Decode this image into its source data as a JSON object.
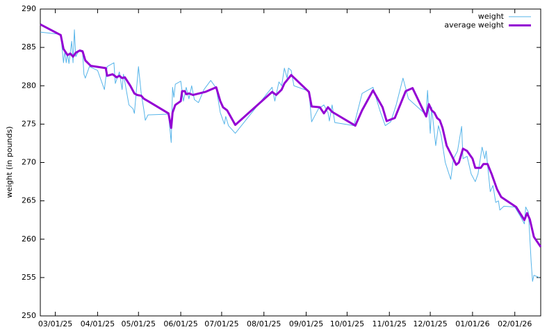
{
  "chart_data": {
    "type": "line",
    "y_label": "weight (in pounds)",
    "xlim": [
      "2025-02-18",
      "2026-02-20"
    ],
    "ylim": [
      250,
      290
    ],
    "yticks": [
      250,
      255,
      260,
      265,
      270,
      275,
      280,
      285,
      290
    ],
    "xticks": [
      {
        "value": "2025-03-01",
        "label": "03/01/25"
      },
      {
        "value": "2025-04-01",
        "label": "04/01/25"
      },
      {
        "value": "2025-05-01",
        "label": "05/01/25"
      },
      {
        "value": "2025-06-01",
        "label": "06/01/25"
      },
      {
        "value": "2025-07-01",
        "label": "07/01/25"
      },
      {
        "value": "2025-08-01",
        "label": "08/01/25"
      },
      {
        "value": "2025-09-01",
        "label": "09/01/25"
      },
      {
        "value": "2025-10-01",
        "label": "10/01/25"
      },
      {
        "value": "2025-11-01",
        "label": "11/01/25"
      },
      {
        "value": "2025-12-01",
        "label": "12/01/25"
      },
      {
        "value": "2026-01-01",
        "label": "01/01/26"
      },
      {
        "value": "2026-02-01",
        "label": "02/01/26"
      }
    ],
    "legend": "top right",
    "series": [
      {
        "name": "weight",
        "color": "#56b4e9",
        "width": 1,
        "x": [
          "2025-02-18",
          "2025-03-05",
          "2025-03-07",
          "2025-03-08",
          "2025-03-09",
          "2025-03-10",
          "2025-03-11",
          "2025-03-13",
          "2025-03-14",
          "2025-03-15",
          "2025-03-16",
          "2025-03-18",
          "2025-03-21",
          "2025-03-22",
          "2025-03-23",
          "2025-03-26",
          "2025-04-01",
          "2025-04-06",
          "2025-04-08",
          "2025-04-13",
          "2025-04-14",
          "2025-04-17",
          "2025-04-19",
          "2025-04-20",
          "2025-04-24",
          "2025-04-27",
          "2025-04-28",
          "2025-05-01",
          "2025-05-03",
          "2025-05-05",
          "2025-05-06",
          "2025-05-08",
          "2025-05-23",
          "2025-05-25",
          "2025-05-26",
          "2025-05-27",
          "2025-05-28",
          "2025-06-01",
          "2025-06-03",
          "2025-06-05",
          "2025-06-07",
          "2025-06-09",
          "2025-06-11",
          "2025-06-14",
          "2025-06-18",
          "2025-06-23",
          "2025-06-27",
          "2025-06-30",
          "2025-07-03",
          "2025-07-04",
          "2025-07-06",
          "2025-07-11",
          "2025-08-07",
          "2025-08-09",
          "2025-08-12",
          "2025-08-14",
          "2025-08-16",
          "2025-08-18",
          "2025-08-19",
          "2025-08-21",
          "2025-08-23",
          "2025-09-03",
          "2025-09-05",
          "2025-09-10",
          "2025-09-14",
          "2025-09-17",
          "2025-09-18",
          "2025-09-20",
          "2025-09-22",
          "2025-10-06",
          "2025-10-12",
          "2025-10-20",
          "2025-10-25",
          "2025-10-29",
          "2025-11-02",
          "2025-11-06",
          "2025-11-11",
          "2025-11-15",
          "2025-11-28",
          "2025-11-29",
          "2025-12-01",
          "2025-12-02",
          "2025-12-05",
          "2025-12-07",
          "2025-12-09",
          "2025-12-12",
          "2025-12-16",
          "2025-12-18",
          "2025-12-21",
          "2025-12-24",
          "2025-12-25",
          "2025-12-28",
          "2025-12-31",
          "2026-01-03",
          "2026-01-05",
          "2026-01-08",
          "2026-01-10",
          "2026-01-11",
          "2026-01-14",
          "2026-01-16",
          "2026-01-18",
          "2026-01-20",
          "2026-01-21",
          "2026-01-24",
          "2026-02-01",
          "2026-02-05",
          "2026-02-08",
          "2026-02-09",
          "2026-02-11",
          "2026-02-13",
          "2026-02-14",
          "2026-02-15",
          "2026-02-19"
        ],
        "values": [
          287.0,
          286.7,
          283,
          284.5,
          283.0,
          284.2,
          282.9,
          285.8,
          283,
          287.3,
          283.8,
          284.5,
          284.4,
          281.5,
          281.0,
          282.5,
          282.0,
          279.5,
          282.5,
          283.0,
          280.3,
          281.8,
          279.5,
          281.5,
          277.5,
          277.0,
          276.4,
          282.5,
          279,
          276.8,
          275.5,
          276.2,
          276.3,
          272.6,
          279.8,
          278.5,
          280.2,
          280.6,
          278,
          279.8,
          278.3,
          280,
          278.2,
          277.8,
          279.5,
          280.7,
          279.7,
          276.5,
          275,
          276,
          274.8,
          273.8,
          279.8,
          278,
          280.5,
          280,
          282.3,
          281,
          282.3,
          282,
          280,
          279.3,
          275.3,
          277,
          277.5,
          276.5,
          275.4,
          277.5,
          275.2,
          274.8,
          279,
          279.8,
          276.8,
          274.8,
          275.3,
          277.5,
          281,
          278.3,
          276.2,
          279.4,
          273.8,
          277.2,
          272.2,
          274.8,
          273.5,
          270,
          267.8,
          270.5,
          271.5,
          274.7,
          270.5,
          270.8,
          268.5,
          267.5,
          268.5,
          272,
          270.5,
          271.5,
          266.2,
          267,
          264.8,
          265,
          263.8,
          264.3,
          264.2,
          263,
          262,
          264.2,
          263.5,
          257,
          254.5,
          255.3,
          255
        ]
      },
      {
        "name": "average weight",
        "color": "#9400d3",
        "width": 3,
        "x": [
          "2025-02-18",
          "2025-03-05",
          "2025-03-07",
          "2025-03-10",
          "2025-03-12",
          "2025-03-14",
          "2025-03-16",
          "2025-03-19",
          "2025-03-21",
          "2025-03-23",
          "2025-03-27",
          "2025-04-07",
          "2025-04-08",
          "2025-04-12",
          "2025-04-15",
          "2025-04-17",
          "2025-04-19",
          "2025-04-21",
          "2025-04-25",
          "2025-04-28",
          "2025-04-30",
          "2025-05-03",
          "2025-05-05",
          "2025-05-08",
          "2025-05-23",
          "2025-05-25",
          "2025-05-26",
          "2025-05-28",
          "2025-06-01",
          "2025-06-02",
          "2025-06-04",
          "2025-06-05",
          "2025-06-07",
          "2025-06-10",
          "2025-06-19",
          "2025-06-27",
          "2025-06-30",
          "2025-07-02",
          "2025-07-05",
          "2025-07-11",
          "2025-08-07",
          "2025-08-10",
          "2025-08-14",
          "2025-08-16",
          "2025-08-21",
          "2025-09-03",
          "2025-09-05",
          "2025-09-11",
          "2025-09-14",
          "2025-09-17",
          "2025-09-20",
          "2025-10-07",
          "2025-10-12",
          "2025-10-20",
          "2025-10-27",
          "2025-10-30",
          "2025-11-05",
          "2025-11-13",
          "2025-11-18",
          "2025-11-28",
          "2025-11-30",
          "2025-12-02",
          "2025-12-04",
          "2025-12-06",
          "2025-12-08",
          "2025-12-10",
          "2025-12-13",
          "2025-12-17",
          "2025-12-20",
          "2025-12-22",
          "2025-12-25",
          "2025-12-28",
          "2026-01-01",
          "2026-01-03",
          "2026-01-07",
          "2026-01-09",
          "2026-01-12",
          "2026-01-15",
          "2026-01-19",
          "2026-01-22",
          "2026-02-02",
          "2026-02-08",
          "2026-02-10",
          "2026-02-12",
          "2026-02-15",
          "2026-02-20"
        ],
        "values": [
          288.0,
          286.6,
          284.8,
          284.0,
          284.2,
          283.8,
          284.3,
          284.6,
          284.5,
          283.3,
          282.6,
          282.3,
          281.3,
          281.5,
          281.1,
          281.3,
          281.0,
          281.1,
          280.0,
          279.0,
          278.8,
          278.7,
          278.3,
          278.0,
          276.4,
          274.5,
          276.5,
          277.5,
          278.0,
          279.3,
          279.3,
          278.9,
          279.0,
          278.8,
          279.2,
          279.8,
          278.0,
          277.2,
          276.8,
          274.9,
          279.2,
          278.8,
          279.5,
          280.3,
          281.4,
          279.2,
          277.3,
          277.2,
          276.4,
          277.2,
          276.6,
          274.8,
          276.8,
          279.4,
          277.2,
          275.4,
          275.8,
          279.3,
          279.7,
          276.0,
          277.6,
          276.8,
          276.5,
          275.8,
          275.5,
          274.5,
          272.2,
          270.8,
          269.7,
          270.0,
          271.8,
          271.5,
          270.5,
          269.3,
          269.3,
          269.8,
          269.8,
          268.5,
          266.5,
          265.5,
          264.2,
          262.5,
          263.4,
          262.6,
          260.3,
          259.0
        ]
      }
    ]
  }
}
